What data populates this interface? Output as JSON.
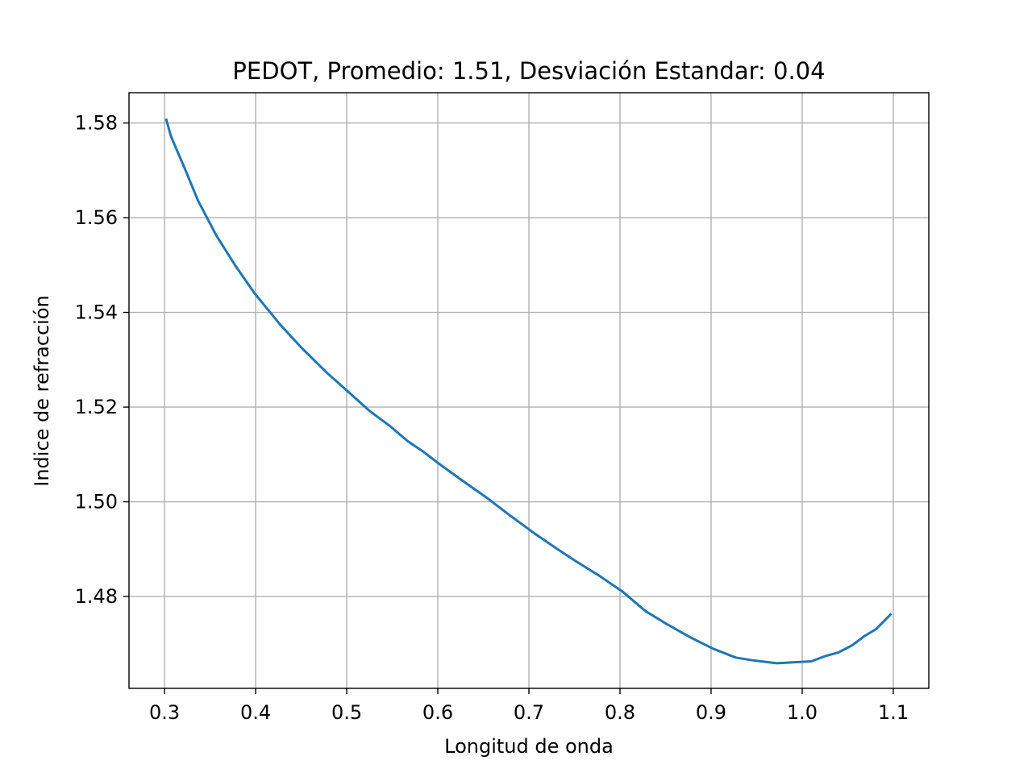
{
  "chart_data": {
    "type": "line",
    "title": "PEDOT, Promedio: 1.51, Desviación Estandar: 0.04",
    "xlabel": "Longitud de onda",
    "ylabel": "Indice de refracción",
    "xlim": [
      0.261,
      1.139
    ],
    "ylim": [
      1.4606,
      1.5864
    ],
    "x_ticks": [
      0.3,
      0.4,
      0.5,
      0.6,
      0.7,
      0.8,
      0.9,
      1.0,
      1.1
    ],
    "x_tick_labels": [
      "0.3",
      "0.4",
      "0.5",
      "0.6",
      "0.7",
      "0.8",
      "0.9",
      "1.0",
      "1.1"
    ],
    "y_ticks": [
      1.48,
      1.5,
      1.52,
      1.54,
      1.56,
      1.58
    ],
    "y_tick_labels": [
      "1.48",
      "1.50",
      "1.52",
      "1.54",
      "1.56",
      "1.58"
    ],
    "grid": true,
    "series_color": "#1f77b4",
    "series": [
      {
        "x": [
          0.302,
          0.307,
          0.313,
          0.322,
          0.337,
          0.357,
          0.378,
          0.399,
          0.427,
          0.45,
          0.478,
          0.503,
          0.525,
          0.548,
          0.567,
          0.584,
          0.601,
          0.626,
          0.652,
          0.678,
          0.704,
          0.729,
          0.752,
          0.778,
          0.803,
          0.828,
          0.852,
          0.877,
          0.902,
          0.927,
          0.946,
          0.972,
          1.01,
          1.025,
          1.04,
          1.055,
          1.068,
          1.081,
          1.097
        ],
        "y": [
          1.5807,
          1.5772,
          1.5745,
          1.5705,
          1.5635,
          1.5562,
          1.5498,
          1.544,
          1.5374,
          1.5326,
          1.5273,
          1.523,
          1.5192,
          1.5159,
          1.5128,
          1.5106,
          1.5081,
          1.5046,
          1.5011,
          1.4973,
          1.4936,
          1.4903,
          1.4874,
          1.4843,
          1.481,
          1.4769,
          1.4741,
          1.4714,
          1.469,
          1.4671,
          1.4665,
          1.4659,
          1.4663,
          1.4674,
          1.4682,
          1.4697,
          1.4716,
          1.4731,
          1.4762
        ]
      }
    ]
  }
}
